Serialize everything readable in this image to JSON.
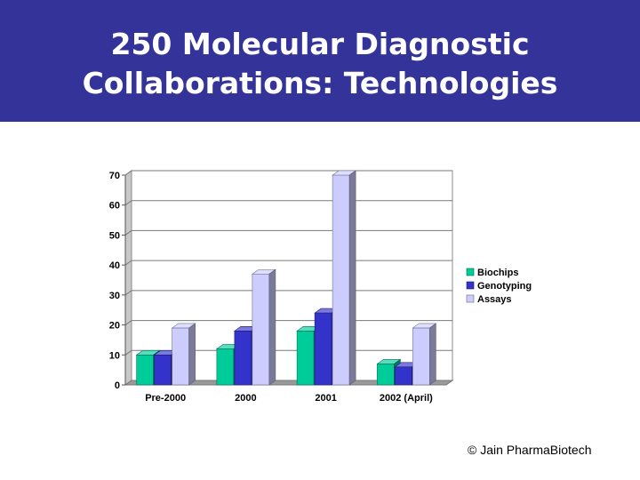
{
  "slide": {
    "title_line1": "250 Molecular Diagnostic",
    "title_line2": "Collaborations: Technologies",
    "copyright": "© Jain PharmaBiotech",
    "banner_color": "#333399"
  },
  "chart_data": {
    "type": "bar",
    "style": "3d-clustered-column",
    "categories": [
      "Pre-2000",
      "2000",
      "2001",
      "2002 (April)"
    ],
    "series": [
      {
        "name": "Biochips",
        "values": [
          10,
          12,
          18,
          7
        ],
        "color": "#00cc99"
      },
      {
        "name": "Genotyping",
        "values": [
          10,
          18,
          24,
          6
        ],
        "color": "#3333cc"
      },
      {
        "name": "Assays",
        "values": [
          19,
          37,
          70,
          19
        ],
        "color": "#ccccff"
      }
    ],
    "ylim": [
      0,
      70
    ],
    "yticks": [
      0,
      10,
      20,
      30,
      40,
      50,
      60,
      70
    ],
    "grid": true,
    "legend": "right"
  }
}
